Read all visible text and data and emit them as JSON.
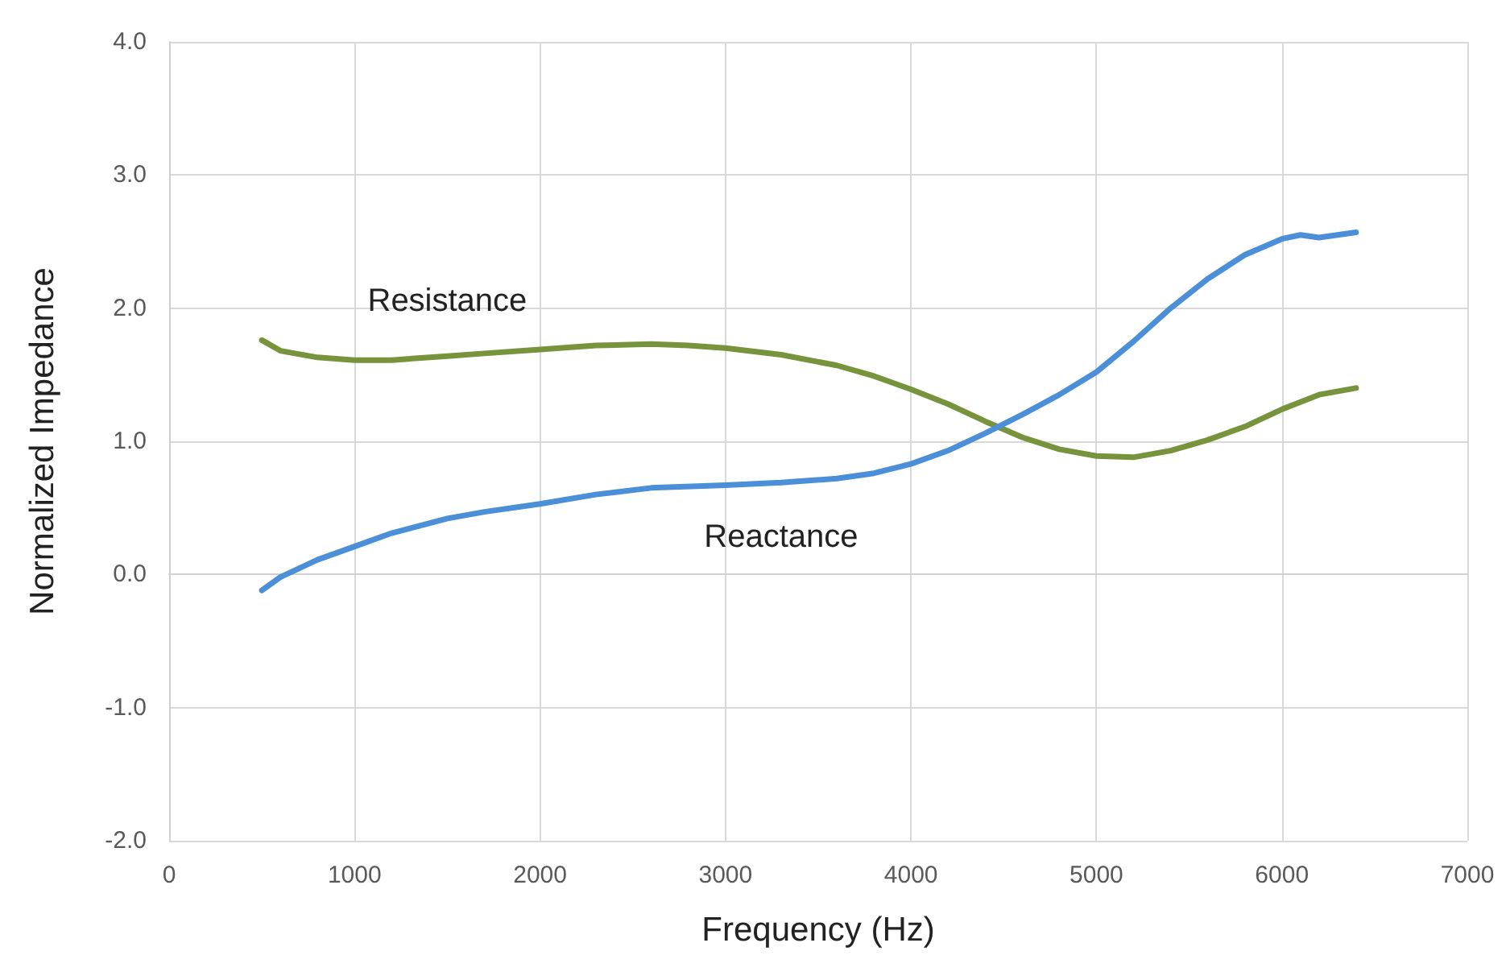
{
  "chart_data": {
    "type": "line",
    "xlabel": "Frequency (Hz)",
    "ylabel": "Normalized Impedance",
    "xlim": [
      0,
      7000
    ],
    "xticks": [
      0,
      1000,
      2000,
      3000,
      4000,
      5000,
      6000,
      7000
    ],
    "ylim": [
      -2,
      4
    ],
    "yticks": [
      {
        "value": -2,
        "label": "-2.0"
      },
      {
        "value": -1,
        "label": "-1.0"
      },
      {
        "value": 0,
        "label": "0.0"
      },
      {
        "value": 1,
        "label": "1.0"
      },
      {
        "value": 2,
        "label": "2.0"
      },
      {
        "value": 3,
        "label": "3.0"
      },
      {
        "value": 4,
        "label": "4.0"
      }
    ],
    "grid": true,
    "marker": "none",
    "line_style": "solid",
    "series": [
      {
        "name": "Resistance",
        "color": "#77933c",
        "x": [
          500,
          600,
          800,
          1000,
          1200,
          1500,
          1700,
          2000,
          2300,
          2600,
          2800,
          3000,
          3300,
          3600,
          3800,
          4000,
          4200,
          4400,
          4600,
          4800,
          5000,
          5200,
          5400,
          5600,
          5800,
          6000,
          6200,
          6400
        ],
        "values": [
          1.76,
          1.68,
          1.63,
          1.61,
          1.61,
          1.64,
          1.66,
          1.69,
          1.72,
          1.73,
          1.72,
          1.7,
          1.65,
          1.57,
          1.49,
          1.39,
          1.28,
          1.15,
          1.03,
          0.94,
          0.89,
          0.88,
          0.93,
          1.01,
          1.11,
          1.24,
          1.35,
          1.4
        ]
      },
      {
        "name": "Reactance",
        "color": "#4a8fd8",
        "x": [
          500,
          600,
          800,
          1000,
          1200,
          1500,
          1700,
          2000,
          2300,
          2600,
          3000,
          3300,
          3600,
          3800,
          4000,
          4200,
          4400,
          4600,
          4800,
          5000,
          5200,
          5400,
          5600,
          5800,
          6000,
          6100,
          6200,
          6400
        ],
        "values": [
          -0.12,
          -0.02,
          0.11,
          0.21,
          0.31,
          0.42,
          0.47,
          0.53,
          0.6,
          0.65,
          0.67,
          0.69,
          0.72,
          0.76,
          0.83,
          0.93,
          1.06,
          1.2,
          1.35,
          1.52,
          1.75,
          2.0,
          2.22,
          2.4,
          2.52,
          2.55,
          2.53,
          2.57
        ]
      }
    ]
  }
}
